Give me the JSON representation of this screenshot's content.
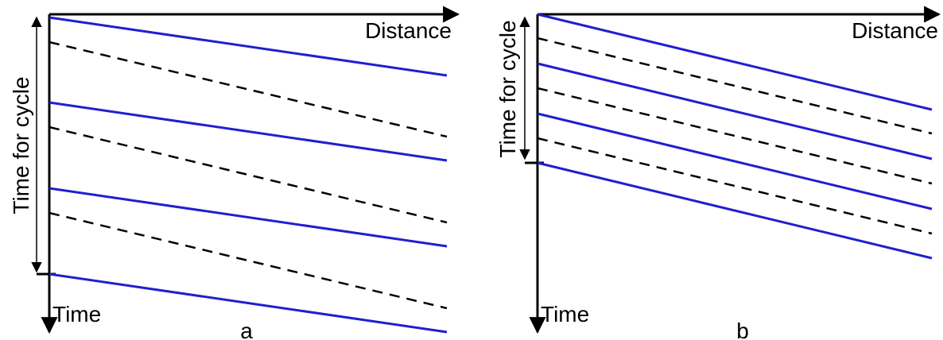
{
  "panels": [
    {
      "id": "a",
      "label": "a",
      "x_axis_label": "Distance",
      "y_axis_label": "Time",
      "cycle_label": "Time for cycle",
      "line_colors": {
        "solid": "#1f1fd0",
        "dashed": "#000000"
      }
    },
    {
      "id": "b",
      "label": "b",
      "x_axis_label": "Distance",
      "y_axis_label": "Time",
      "cycle_label": "Time for cycle",
      "line_colors": {
        "solid": "#1f1fd0",
        "dashed": "#000000"
      }
    }
  ]
}
